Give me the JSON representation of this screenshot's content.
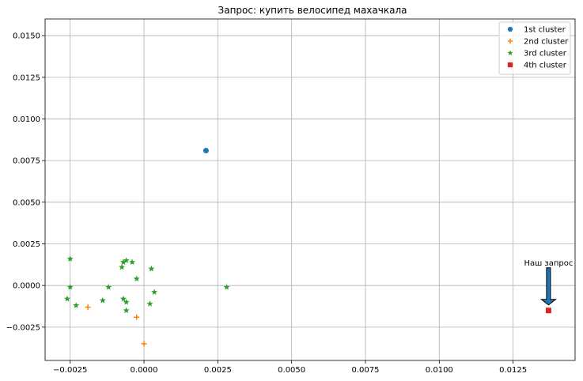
{
  "chart_data": {
    "type": "scatter",
    "title": "Запрос: купить велосипед махачкала",
    "xlabel": "",
    "ylabel": "",
    "xlim": [
      -0.00335,
      0.0146
    ],
    "ylim": [
      -0.0045,
      0.016
    ],
    "x_ticks": [
      -0.0025,
      0.0,
      0.0025,
      0.005,
      0.0075,
      0.01,
      0.0125
    ],
    "x_tick_labels": [
      "−0.0025",
      "0.0000",
      "0.0025",
      "0.0050",
      "0.0075",
      "0.0100",
      "0.0125"
    ],
    "y_ticks": [
      -0.0025,
      0.0,
      0.0025,
      0.005,
      0.0075,
      0.01,
      0.0125,
      0.015
    ],
    "y_tick_labels": [
      "−0.0025",
      "0.0000",
      "0.0025",
      "0.0050",
      "0.0075",
      "0.0100",
      "0.0125",
      "0.0150"
    ],
    "grid": true,
    "legend_position": "top-right",
    "series": [
      {
        "name": "1st cluster",
        "marker": "circle",
        "color": "#1f77b4",
        "points": [
          [
            0.0021,
            0.0081
          ]
        ]
      },
      {
        "name": "2nd cluster",
        "marker": "plus",
        "color": "#ff7f0e",
        "points": [
          [
            -0.0019,
            -0.0013
          ],
          [
            -0.00025,
            -0.0019
          ],
          [
            0.0,
            -0.0035
          ]
        ]
      },
      {
        "name": "3rd cluster",
        "marker": "star",
        "color": "#2ca02c",
        "points": [
          [
            -0.0025,
            0.0016
          ],
          [
            -0.0026,
            -0.0008
          ],
          [
            -0.0025,
            -0.0001
          ],
          [
            -0.0023,
            -0.0012
          ],
          [
            -0.0014,
            -0.0009
          ],
          [
            -0.0012,
            -0.0001
          ],
          [
            -0.00075,
            0.0011
          ],
          [
            -0.0007,
            0.0014
          ],
          [
            -0.0006,
            0.0015
          ],
          [
            -0.0004,
            0.0014
          ],
          [
            -0.0007,
            -0.0008
          ],
          [
            -0.0006,
            -0.001
          ],
          [
            -0.0006,
            -0.0015
          ],
          [
            -0.00025,
            0.0004
          ],
          [
            0.00025,
            0.001
          ],
          [
            0.00035,
            -0.0004
          ],
          [
            0.0002,
            -0.0011
          ],
          [
            0.0028,
            -0.0001
          ]
        ]
      },
      {
        "name": "4th cluster",
        "marker": "square",
        "color": "#d62728",
        "points": [
          [
            0.0137,
            -0.0015
          ]
        ]
      }
    ],
    "annotations": [
      {
        "text": "Наш запрос",
        "x": 0.0137,
        "y": -0.0015,
        "arrow_color": "#1f77b4"
      }
    ]
  }
}
